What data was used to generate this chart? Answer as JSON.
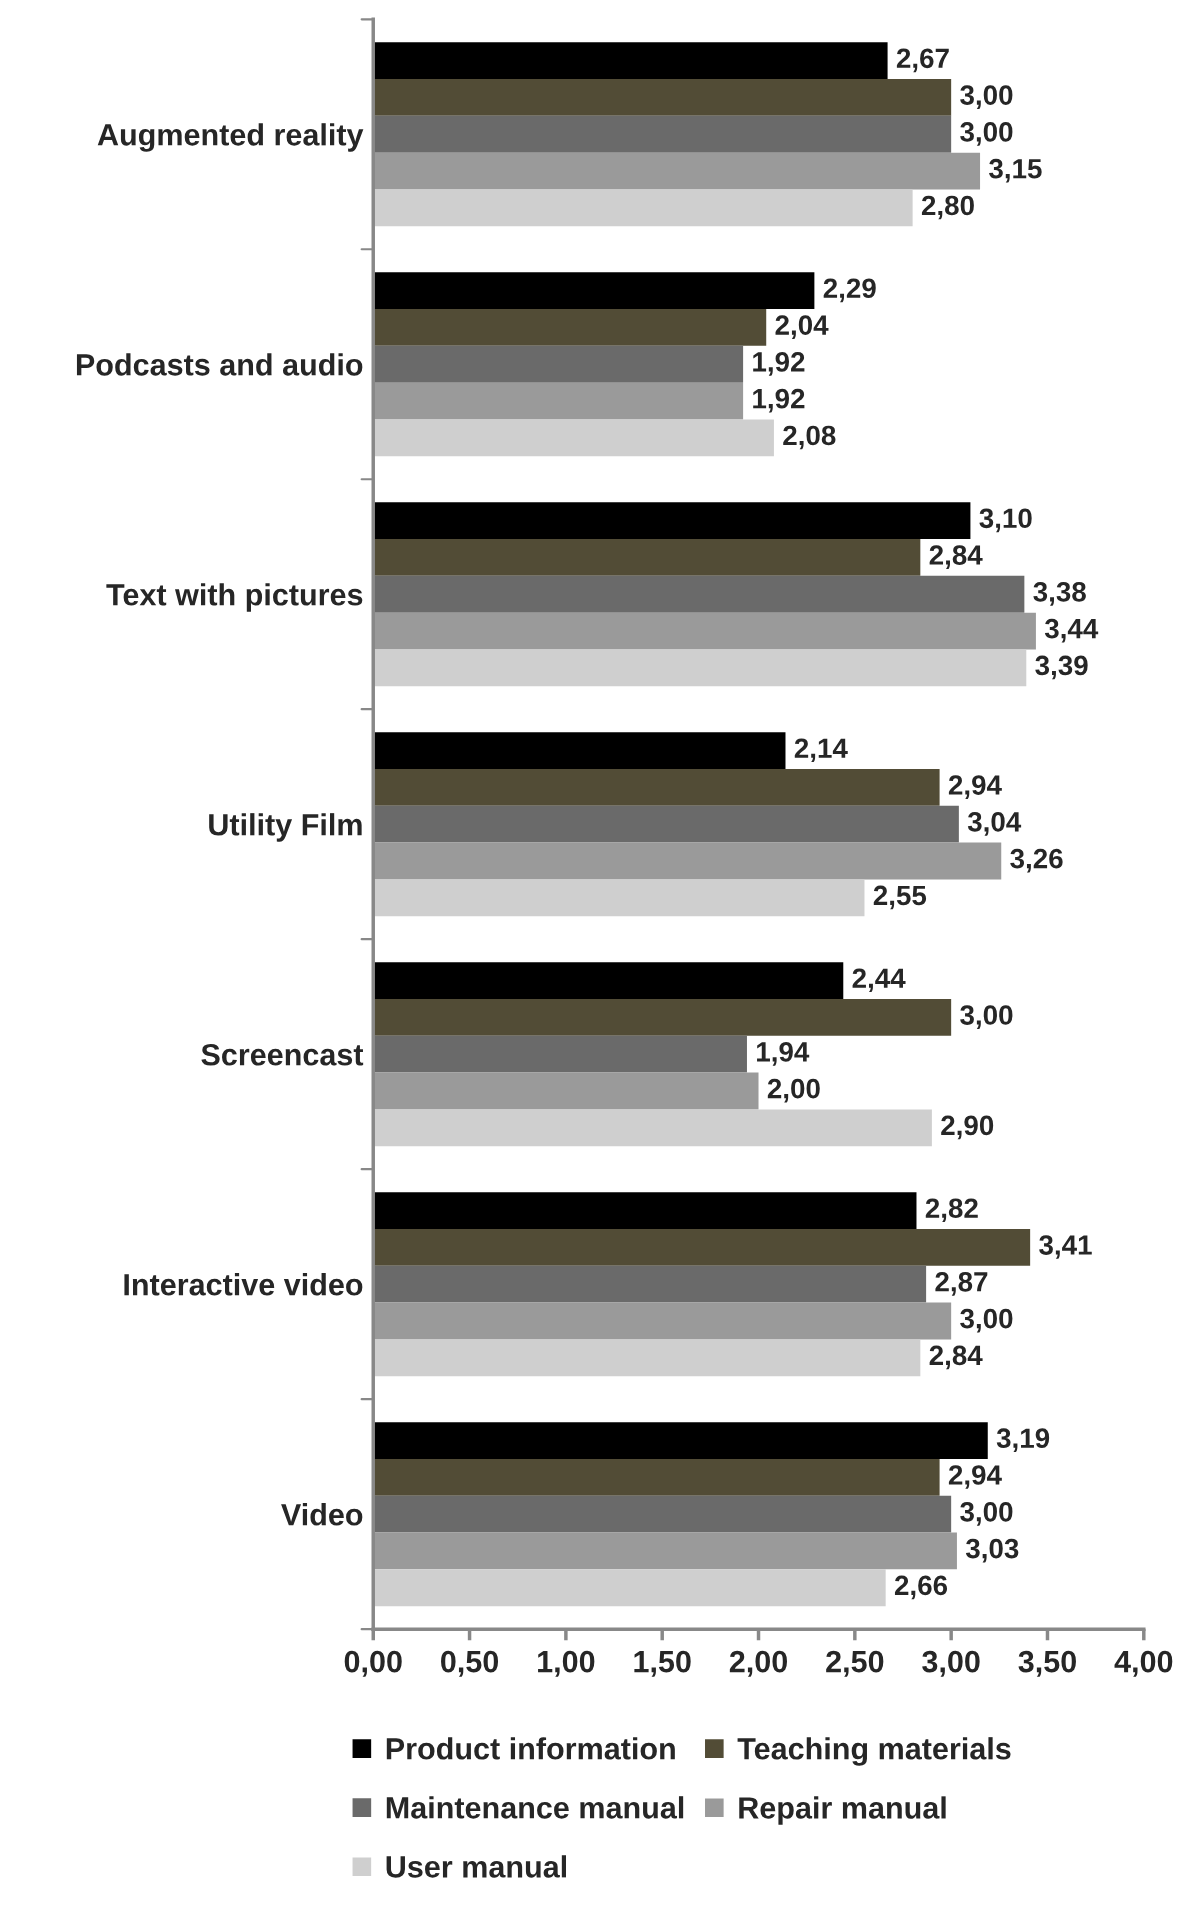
{
  "chart_data": {
    "type": "bar",
    "orientation": "horizontal",
    "categories": [
      "Augmented reality",
      "Podcasts and audio",
      "Text with pictures",
      "Utility Film",
      "Screencast",
      "Interactive video",
      "Video"
    ],
    "series": [
      {
        "name": "Product information",
        "color": "#000000",
        "values": [
          2.67,
          2.29,
          3.1,
          2.14,
          2.44,
          2.82,
          3.19
        ],
        "value_labels": [
          "2,67",
          "2,29",
          "3,10",
          "2,14",
          "2,44",
          "2,82",
          "3,19"
        ]
      },
      {
        "name": "Teaching materials",
        "color": "#524c36",
        "values": [
          3.0,
          2.04,
          2.84,
          2.94,
          3.0,
          3.41,
          2.94
        ],
        "value_labels": [
          "3,00",
          "2,04",
          "2,84",
          "2,94",
          "3,00",
          "3,41",
          "2,94"
        ]
      },
      {
        "name": "Maintenance manual",
        "color": "#6a6a6a",
        "values": [
          3.0,
          1.92,
          3.38,
          3.04,
          1.94,
          2.87,
          3.0
        ],
        "value_labels": [
          "3,00",
          "1,92",
          "3,38",
          "3,04",
          "1,94",
          "2,87",
          "3,00"
        ]
      },
      {
        "name": "Repair manual",
        "color": "#9a9a9a",
        "values": [
          3.15,
          1.92,
          3.44,
          3.26,
          2.0,
          3.0,
          3.03
        ],
        "value_labels": [
          "3,15",
          "1,92",
          "3,44",
          "3,26",
          "2,00",
          "3,00",
          "3,03"
        ]
      },
      {
        "name": "User manual",
        "color": "#cfcfcf",
        "values": [
          2.8,
          2.08,
          3.39,
          2.55,
          2.9,
          2.84,
          2.66
        ],
        "value_labels": [
          "2,80",
          "2,08",
          "3,39",
          "2,55",
          "2,90",
          "2,84",
          "2,66"
        ]
      }
    ],
    "xlim": [
      0,
      4
    ],
    "xticks": [
      {
        "value": 0,
        "label": "0,00"
      },
      {
        "value": 0.5,
        "label": "0,50"
      },
      {
        "value": 1,
        "label": "1,00"
      },
      {
        "value": 1.5,
        "label": "1,50"
      },
      {
        "value": 2,
        "label": "2,00"
      },
      {
        "value": 2.5,
        "label": "2,50"
      },
      {
        "value": 3,
        "label": "3,00"
      },
      {
        "value": 3.5,
        "label": "3,50"
      },
      {
        "value": 4,
        "label": "4,00"
      }
    ],
    "grid": false,
    "legend": "bottom"
  }
}
